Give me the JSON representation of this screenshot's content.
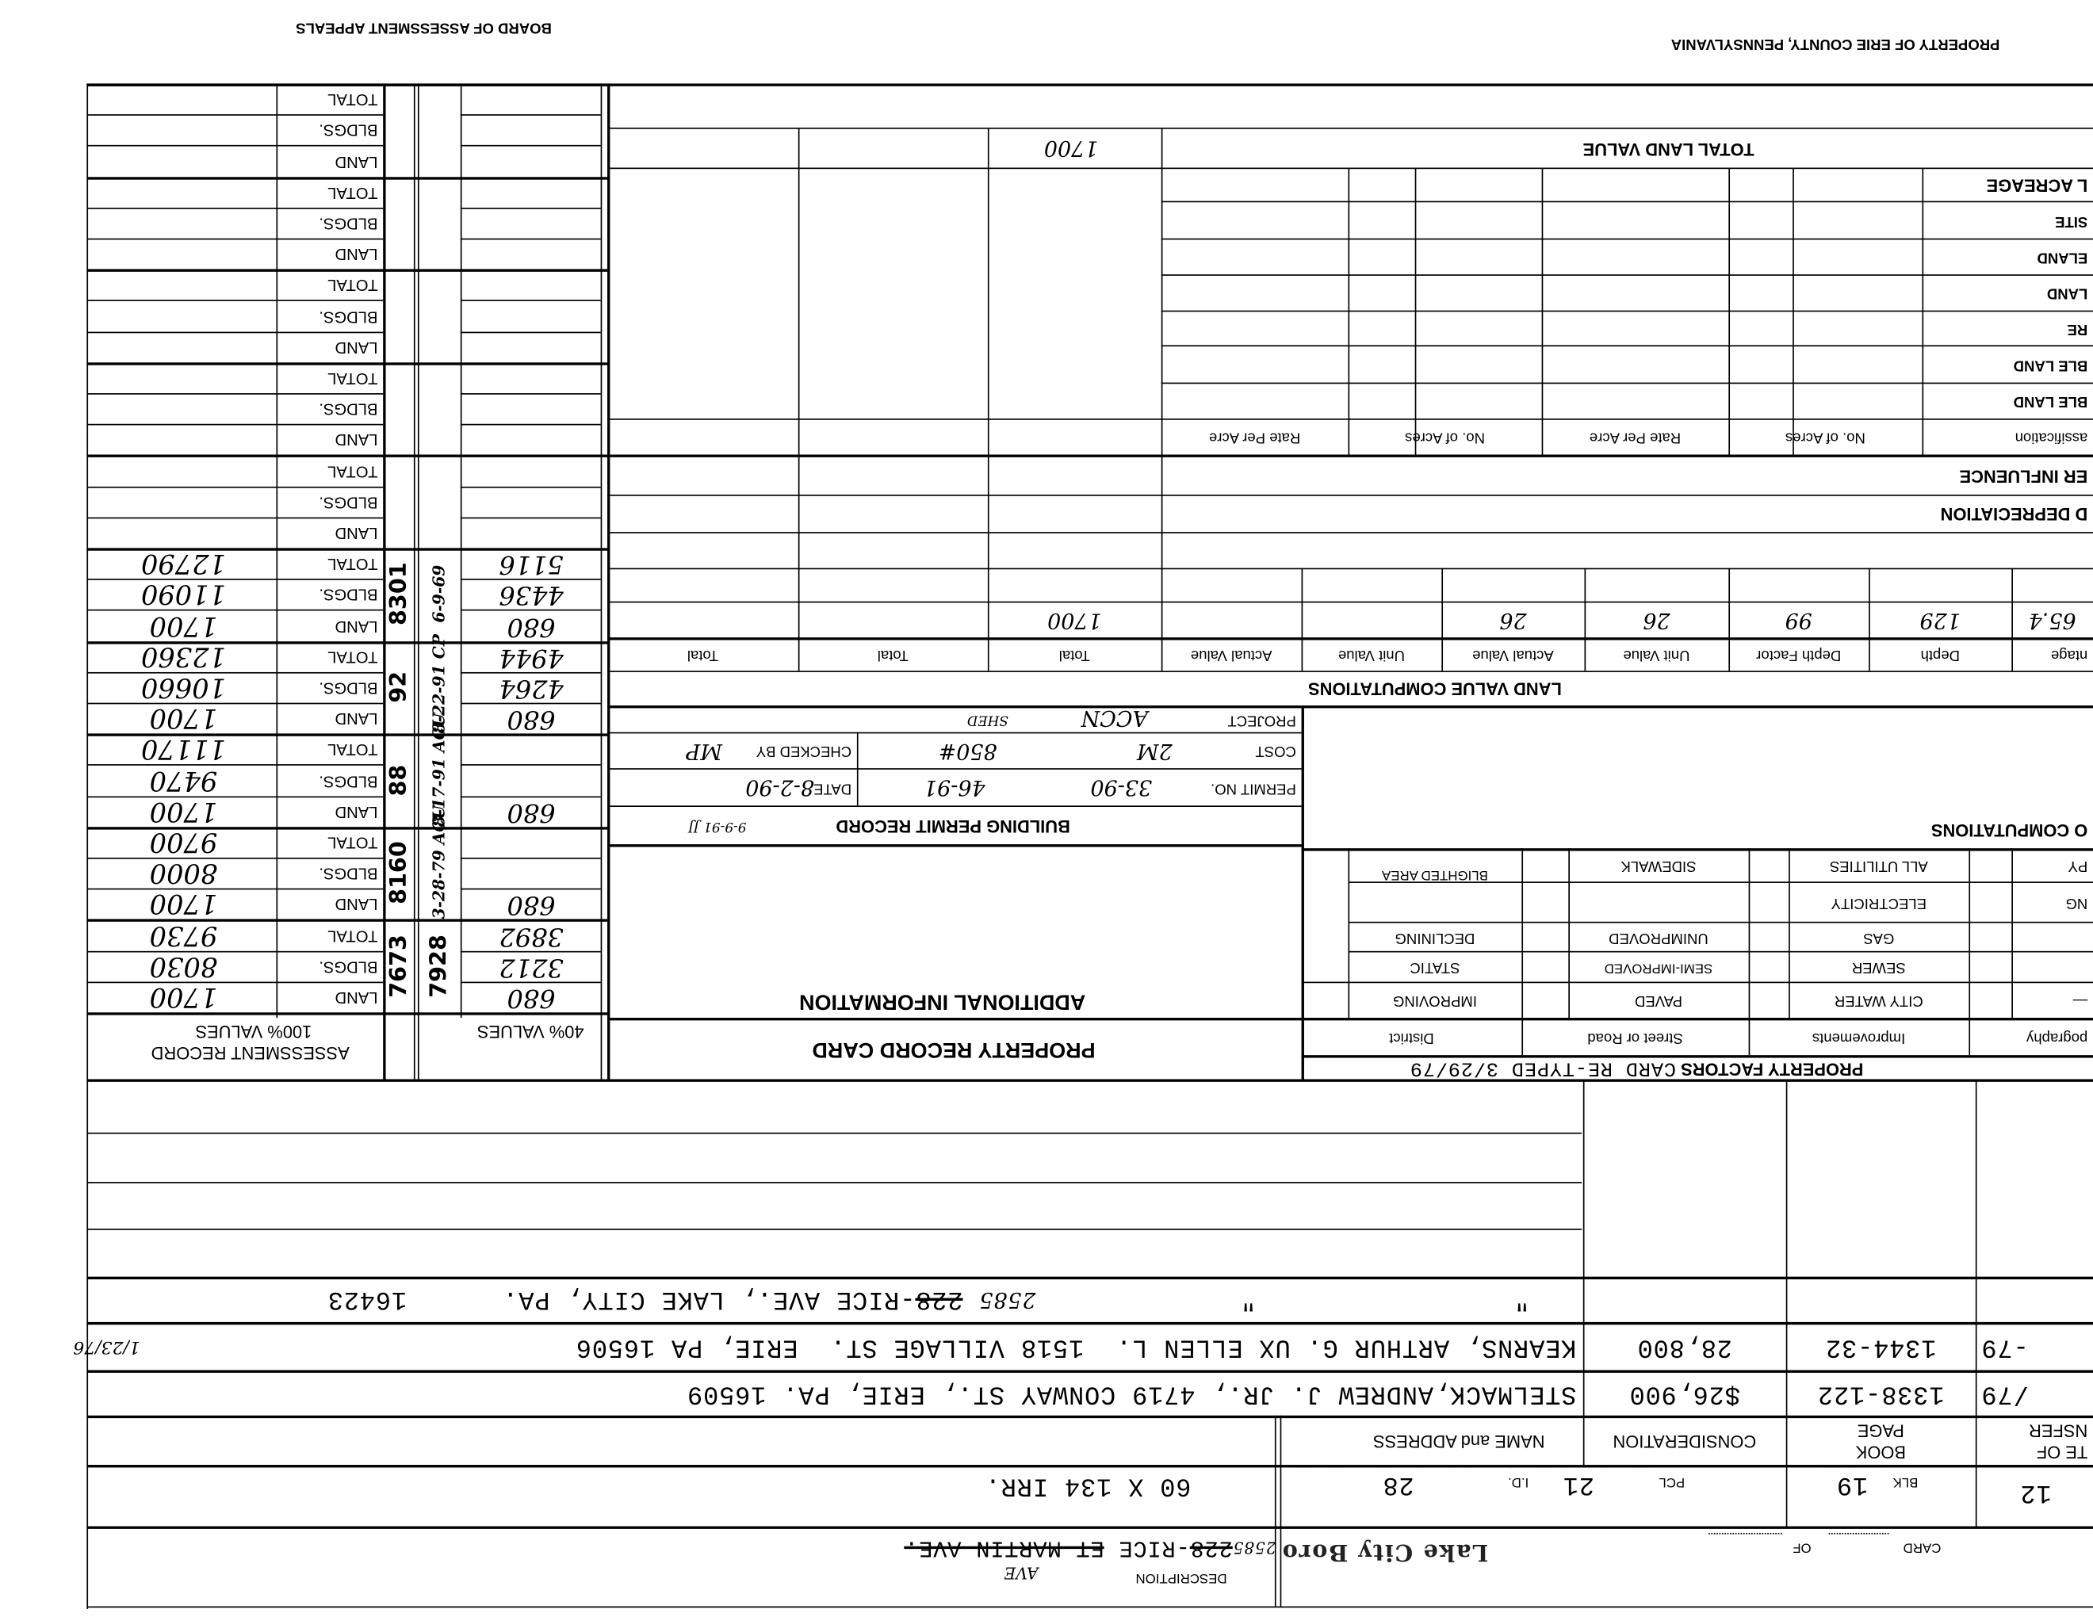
{
  "header": {
    "county": "PROPERTY OF ERIE COUNTY, PENNSYLVANIA",
    "board": "BOARD OF ASSESSMENT APPEALS"
  },
  "card": {
    "lot": "12",
    "blk_label": "BLK",
    "blk": "19",
    "pcl_label": "PCL",
    "pcl": "21",
    "id_label": "I.D.",
    "id": "28",
    "card_label": "CARD",
    "of_label": "OF",
    "municipality_stamp": "Lake City Boro",
    "description_label": "DESCRIPTION",
    "description": {
      "new_number": "2585",
      "struck_number": "228",
      "street": "-RICE",
      "struck_suffix": "ET MARTIN AVE.",
      "inserted": "AVE"
    },
    "dimensions": "60 X 134 IRR."
  },
  "transfers": {
    "headers": {
      "date": [
        "TE OF",
        "NSFER"
      ],
      "book_page": [
        "BOOK",
        "PAGE"
      ],
      "consideration": "CONSIDERATION",
      "name_address": "NAME and ADDRESS"
    },
    "rows": [
      {
        "date": "/79",
        "book_page": "1338-122",
        "consideration": "$26,900",
        "name_address": "STELMACK,ANDREW J. JR., 4719 CONWAY ST., ERIE, PA. 16509"
      },
      {
        "date": "-79",
        "book_page": "1344-32",
        "consideration": "28,800",
        "name_address": "KEARNS, ARTHUR G. UX ELLEN L.  1518 VILLAGE ST.  ERIE, PA 16506",
        "note": "1/23/76"
      }
    ],
    "address_row": {
      "ditto_1": "\"",
      "ditto_2": "\"",
      "new_number": "2585",
      "struck_number": "228",
      "address": "-RICE AVE., LAKE CITY, PA.",
      "zip": "16423"
    }
  },
  "property_factors": {
    "title": "PROPERTY FACTORS",
    "retyped": "CARD RE-TYPED 3/29/79",
    "headers": [
      "pography",
      "Improvements",
      "Street or Road",
      "District"
    ],
    "rows": [
      [
        "—",
        "CITY WATER",
        "PAVED",
        "IMPROVING"
      ],
      [
        "",
        "SEWER",
        "SEMI-IMPROVED",
        "STATIC"
      ],
      [
        "",
        "GAS",
        "UNIMPROVED",
        "DECLINING"
      ],
      [
        "NG",
        "ELECTRICITY",
        "",
        ""
      ],
      [
        "PY",
        "ALL UTILITIES",
        "SIDEWALK",
        "BLIGHTED AREA"
      ]
    ],
    "computations_label": "O COMPUTATIONS"
  },
  "main": {
    "title": "PROPERTY RECORD CARD",
    "additional_info": "ADDITIONAL INFORMATION"
  },
  "building_permit": {
    "title": "BUILDING PERMIT RECORD",
    "title_note": "9-9-91 JJ",
    "permit_label": "PERMIT NO.",
    "permit_no": "33-90",
    "permit_no_2": "46-91",
    "date_label": "DATE",
    "date": "8-2-90",
    "cost_label": "COST",
    "cost": "2M",
    "cost_2": "850#",
    "checked_label": "CHECKED BY",
    "checked_by": "MP",
    "project_label": "PROJECT",
    "project": "ACCN",
    "project_2": "SHED"
  },
  "land_value": {
    "title": "LAND VALUE COMPUTATIONS",
    "headers": [
      "ntage",
      "Depth",
      "Depth Factor",
      "Unit Value",
      "Actual Value",
      "Unit Value",
      "Actual Value",
      "Total",
      "Total",
      "Total"
    ],
    "values": [
      "65.4",
      "129",
      "99",
      "26",
      "26",
      "",
      "",
      "1700",
      "",
      ""
    ]
  },
  "acreage": {
    "depreciation_label": "D DEPRECIATION",
    "influence_label": "ER INFLUENCE",
    "headers": [
      "assification",
      "No. of Acres",
      "Rate Per Acre",
      "No. of Acres",
      "Rate Per Acre"
    ],
    "row_labels": [
      "BLE LAND",
      "BLE LAND",
      "RE",
      "LAND",
      "ELAND",
      "SITE",
      "L ACREAGE"
    ],
    "total_land_value_label": "TOTAL LAND VALUE",
    "total_land_value": "1700"
  },
  "assessment": {
    "title": "ASSESSMENT RECORD",
    "subtitle_100": "100% VALUES",
    "subtitle_40": "40% VALUES",
    "row_labels": [
      "LAND",
      "BLDGS.",
      "TOTAL"
    ],
    "groups": [
      {
        "land": "1700",
        "bldgs": "8030",
        "total": "9730",
        "land40": "680",
        "bldgs40": "3212",
        "total40": "3892",
        "stamp": "7673",
        "stamp2": "7928",
        "note": ""
      },
      {
        "land": "1700",
        "bldgs": "8000",
        "total": "9700",
        "land40": "680",
        "bldgs40": "",
        "total40": "",
        "stamp": "8160",
        "stamp2": "",
        "note": "3-28-79 ACU"
      },
      {
        "land": "1700",
        "bldgs": "9470",
        "total": "11170",
        "land40": "680",
        "bldgs40": "",
        "total40": "",
        "stamp": "88",
        "stamp2": "",
        "note": "8-17-91 ACU"
      },
      {
        "land": "1700",
        "bldgs": "10660",
        "total": "12360",
        "land40": "680",
        "bldgs40": "4264",
        "total40": "4944",
        "stamp": "92",
        "stamp2": "",
        "note": "8-22-91 CP"
      },
      {
        "land": "1700",
        "bldgs": "11090",
        "total": "12790",
        "land40": "680",
        "bldgs40": "4436",
        "total40": "5116",
        "stamp": "8301",
        "stamp2": "",
        "note": "6-9-69"
      },
      {
        "land": "",
        "bldgs": "",
        "total": "",
        "land40": "",
        "bldgs40": "",
        "total40": "",
        "stamp": "",
        "stamp2": "",
        "note": ""
      },
      {
        "land": "",
        "bldgs": "",
        "total": "",
        "land40": "",
        "bldgs40": "",
        "total40": "",
        "stamp": "",
        "stamp2": "",
        "note": ""
      },
      {
        "land": "",
        "bldgs": "",
        "total": "",
        "land40": "",
        "bldgs40": "",
        "total40": "",
        "stamp": "",
        "stamp2": "",
        "note": ""
      },
      {
        "land": "",
        "bldgs": "",
        "total": "",
        "land40": "",
        "bldgs40": "",
        "total40": "",
        "stamp": "",
        "stamp2": "",
        "note": ""
      },
      {
        "land": "",
        "bldgs": "",
        "total": "",
        "land40": "",
        "bldgs40": "",
        "total40": "",
        "stamp": "",
        "stamp2": "",
        "note": ""
      }
    ]
  }
}
